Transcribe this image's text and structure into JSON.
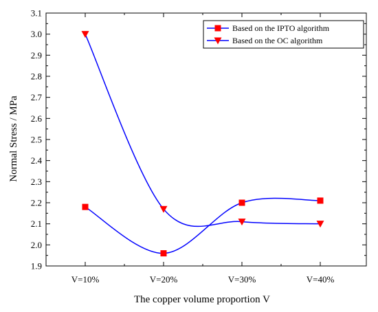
{
  "chart_data": {
    "type": "line",
    "categories": [
      "V=10%",
      "V=20%",
      "V=30%",
      "V=40%"
    ],
    "xlabel": "The copper volume proportion V",
    "ylabel": "Normal Stress / MPa",
    "ylim": [
      1.9,
      3.1
    ],
    "yticks": [
      "1.9",
      "2.0",
      "2.1",
      "2.2",
      "2.3",
      "2.4",
      "2.5",
      "2.6",
      "2.7",
      "2.8",
      "2.9",
      "3.0",
      "3.1"
    ],
    "grid": false,
    "legend_position": "top-right",
    "series": [
      {
        "name": "Based on the IPTO algorithm",
        "values": [
          2.18,
          1.96,
          2.2,
          2.21
        ],
        "marker": "square",
        "marker_color": "#ff0000",
        "line_color": "#0000ff"
      },
      {
        "name": "Based on the OC algorithm",
        "values": [
          3.0,
          2.17,
          2.11,
          2.1
        ],
        "marker": "triangle-down",
        "marker_color": "#ff0000",
        "line_color": "#0000ff"
      }
    ]
  }
}
